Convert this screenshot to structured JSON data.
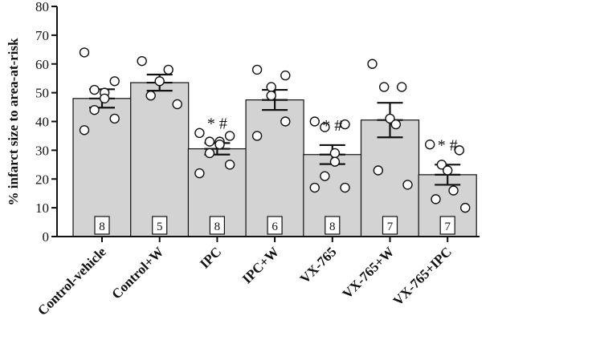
{
  "chart_data": {
    "type": "bar",
    "ylabel": "% infarct size to area-at-risk",
    "xlabel": "",
    "title": "",
    "ylim": [
      0,
      80
    ],
    "yticks": [
      0,
      10,
      20,
      30,
      40,
      50,
      60,
      70,
      80
    ],
    "categories": [
      "Control-vehicle",
      "Control+W",
      "IPC",
      "IPC+W",
      "VX-765",
      "VX-765+W",
      "VX-765+IPC"
    ],
    "values": [
      48,
      53.5,
      30.5,
      47.5,
      28.5,
      40.5,
      21.5
    ],
    "sem": [
      3.2,
      2.8,
      2,
      3.5,
      3.3,
      6,
      3.5
    ],
    "n": [
      "8",
      "5",
      "8",
      "6",
      "8",
      "7",
      "7"
    ],
    "significance": [
      "",
      "",
      "* #",
      "",
      "* #",
      "",
      "* #"
    ],
    "points": [
      [
        64,
        54,
        51,
        50,
        48,
        44,
        41,
        37
      ],
      [
        61,
        58,
        54,
        49,
        46
      ],
      [
        36,
        35,
        33,
        33,
        32,
        29,
        25,
        22
      ],
      [
        58,
        56,
        52,
        49,
        40,
        35
      ],
      [
        40,
        39,
        38,
        29,
        26,
        21,
        17,
        17
      ],
      [
        60,
        52,
        52,
        41,
        39,
        23,
        18
      ],
      [
        32,
        30,
        25,
        23,
        16,
        13,
        10
      ]
    ],
    "bar_color": "#d3d3d3",
    "grid": false,
    "legend": "none"
  }
}
